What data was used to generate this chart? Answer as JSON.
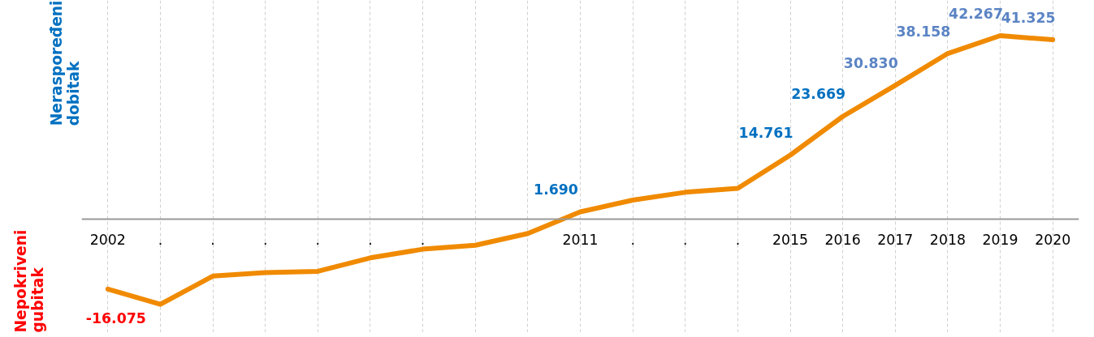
{
  "chart_data": {
    "type": "line",
    "categories": [
      "2002",
      ".",
      ".",
      ".",
      ".",
      ".",
      ".",
      null,
      null,
      "2011",
      ".",
      ".",
      ".",
      "2015",
      "2016",
      "2017",
      "2018",
      "2019",
      "2020"
    ],
    "series": [
      {
        "color": "#f08a00",
        "values": [
          -16.075,
          -19.6,
          -13.1,
          -12.3,
          -12.0,
          -8.9,
          -6.9,
          -6.0,
          -3.3,
          1.69,
          4.4,
          6.2,
          7.1,
          14.761,
          23.669,
          30.83,
          38.158,
          42.267,
          41.325
        ],
        "value_labels": [
          "-16.075",
          null,
          null,
          null,
          null,
          null,
          null,
          null,
          null,
          "1.690",
          null,
          null,
          null,
          "14.761",
          "23.669",
          "30.830",
          "38.158",
          "42.267",
          "41.325"
        ]
      }
    ],
    "annotations": [
      "Neraspoređeni dobitak",
      "Nepokriveni gubitak"
    ],
    "grid": "x",
    "marker": "none",
    "line_style": "solid"
  }
}
